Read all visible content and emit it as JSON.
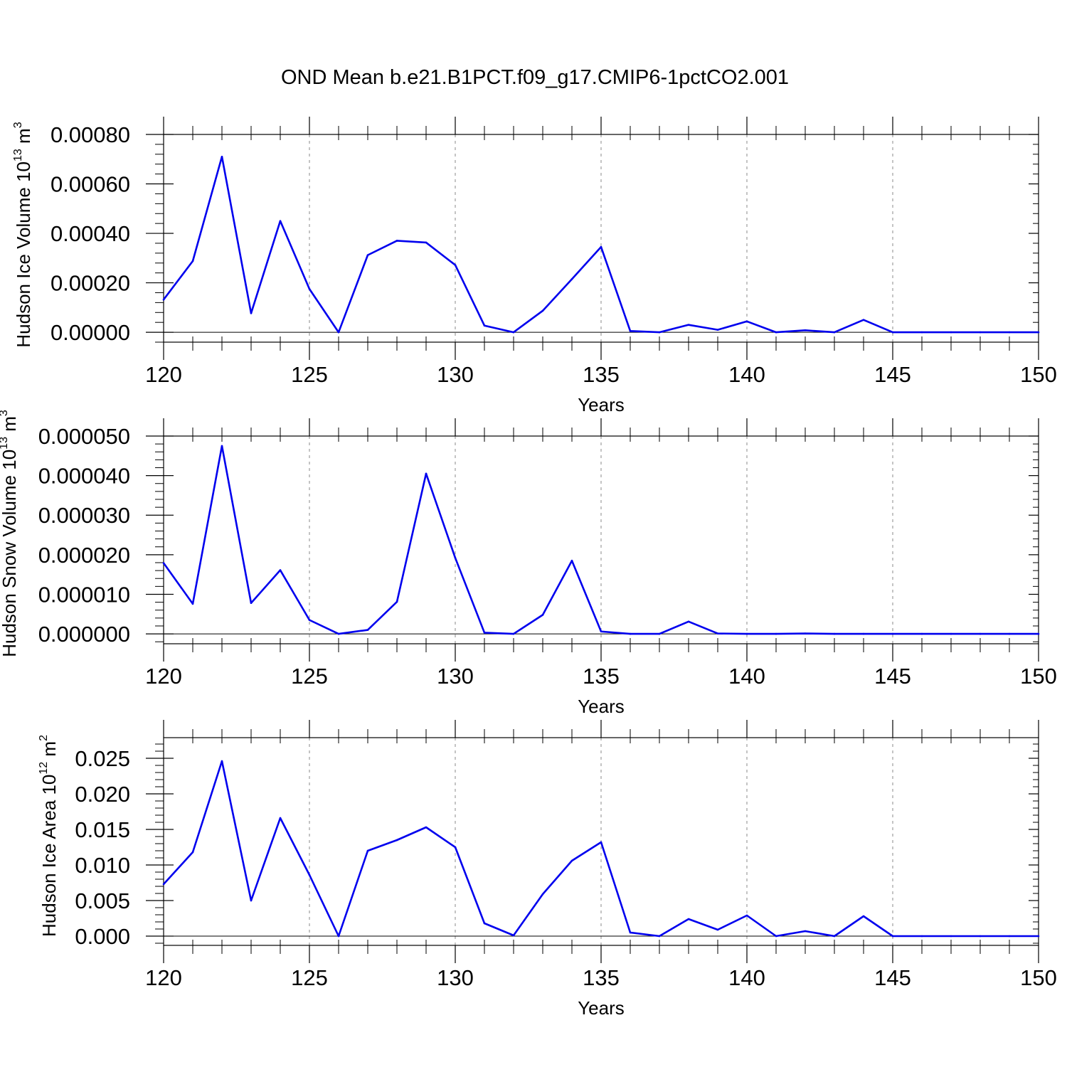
{
  "title": "OND Mean b.e21.B1PCT.f09_g17.CMIP6-1pctCO2.001",
  "colors": {
    "series": "#0000ee",
    "axes": "#000000",
    "grid": "#888888"
  },
  "chart_data": [
    {
      "type": "line",
      "ylabel": {
        "text": "Hudson Ice Volume 10",
        "exponent": "13",
        "unit": " m",
        "unit_exponent": "3"
      },
      "xlabel": "Years",
      "xlim": [
        120,
        150
      ],
      "ylim": [
        -4e-05,
        0.0008
      ],
      "xticks": [
        120,
        125,
        130,
        135,
        140,
        145,
        150
      ],
      "xtick_labels": [
        "120",
        "125",
        "130",
        "135",
        "140",
        "145",
        "150"
      ],
      "yticks": [
        0,
        0.0002,
        0.0004,
        0.0006,
        0.0008
      ],
      "ytick_labels": [
        "0.00000",
        "0.00020",
        "0.00040",
        "0.00060",
        "0.00080"
      ],
      "x": [
        120,
        121,
        122,
        123,
        124,
        125,
        126,
        127,
        128,
        129,
        130,
        131,
        132,
        133,
        134,
        135,
        136,
        137,
        138,
        139,
        140,
        141,
        142,
        143,
        144,
        145,
        146,
        147,
        148,
        149,
        150
      ],
      "series": [
        {
          "values": [
            0.000132,
            0.000288,
            0.00071,
            7.7e-05,
            0.00045,
            0.000175,
            0.0,
            0.000312,
            0.00037,
            0.000363,
            0.000272,
            2.7e-05,
            0.0,
            8.7e-05,
            0.000215,
            0.000345,
            5e-06,
            0.0,
            3e-05,
            1e-05,
            4.4e-05,
            0.0,
            8e-06,
            0.0,
            5e-05,
            0.0,
            0.0,
            0.0,
            0.0,
            0.0,
            0.0
          ]
        }
      ]
    },
    {
      "type": "line",
      "ylabel": {
        "text": "Hudson Snow Volume 10",
        "exponent": "13",
        "unit": " m",
        "unit_exponent": "3"
      },
      "xlabel": "Years",
      "xlim": [
        120,
        150
      ],
      "ylim": [
        -2.5e-06,
        5e-05
      ],
      "xticks": [
        120,
        125,
        130,
        135,
        140,
        145,
        150
      ],
      "xtick_labels": [
        "120",
        "125",
        "130",
        "135",
        "140",
        "145",
        "150"
      ],
      "yticks": [
        0,
        1e-05,
        2e-05,
        3e-05,
        4e-05,
        5e-05
      ],
      "ytick_labels": [
        "0.000000",
        "0.000010",
        "0.000020",
        "0.000030",
        "0.000040",
        "0.000050"
      ],
      "x": [
        120,
        121,
        122,
        123,
        124,
        125,
        126,
        127,
        128,
        129,
        130,
        131,
        132,
        133,
        134,
        135,
        136,
        137,
        138,
        139,
        140,
        141,
        142,
        143,
        144,
        145,
        146,
        147,
        148,
        149,
        150
      ],
      "series": [
        {
          "values": [
            1.79e-05,
            7.6e-06,
            4.75e-05,
            7.8e-06,
            1.61e-05,
            3.5e-06,
            0.0,
            1e-06,
            8.1e-06,
            4.05e-05,
            1.92e-05,
            3e-07,
            0.0,
            4.8e-06,
            1.85e-05,
            6e-07,
            0.0,
            0.0,
            3.1e-06,
            1e-07,
            0.0,
            0.0,
            1e-07,
            0.0,
            0.0,
            0.0,
            0.0,
            0.0,
            0.0,
            0.0,
            0.0
          ]
        }
      ]
    },
    {
      "type": "line",
      "ylabel": {
        "text": "Hudson Ice Area 10",
        "exponent": "12",
        "unit": " m",
        "unit_exponent": "2"
      },
      "xlabel": "Years",
      "xlim": [
        120,
        150
      ],
      "ylim": [
        -0.0013,
        0.0279
      ],
      "xticks": [
        120,
        125,
        130,
        135,
        140,
        145,
        150
      ],
      "xtick_labels": [
        "120",
        "125",
        "130",
        "135",
        "140",
        "145",
        "150"
      ],
      "yticks": [
        0,
        0.005,
        0.01,
        0.015,
        0.02,
        0.025
      ],
      "ytick_labels": [
        "0.000",
        "0.005",
        "0.010",
        "0.015",
        "0.020",
        "0.025"
      ],
      "x": [
        120,
        121,
        122,
        123,
        124,
        125,
        126,
        127,
        128,
        129,
        130,
        131,
        132,
        133,
        134,
        135,
        136,
        137,
        138,
        139,
        140,
        141,
        142,
        143,
        144,
        145,
        146,
        147,
        148,
        149,
        150
      ],
      "series": [
        {
          "values": [
            0.0073,
            0.0118,
            0.0246,
            0.005,
            0.0166,
            0.0086,
            0.0,
            0.012,
            0.0135,
            0.0153,
            0.0125,
            0.0018,
            0.0001,
            0.0059,
            0.0106,
            0.0132,
            0.0005,
            0.0,
            0.0024,
            0.0009,
            0.0029,
            0.0,
            0.0007,
            0.0,
            0.0028,
            0.0,
            0.0,
            0.0,
            0.0,
            0.0,
            0.0
          ]
        }
      ]
    }
  ]
}
